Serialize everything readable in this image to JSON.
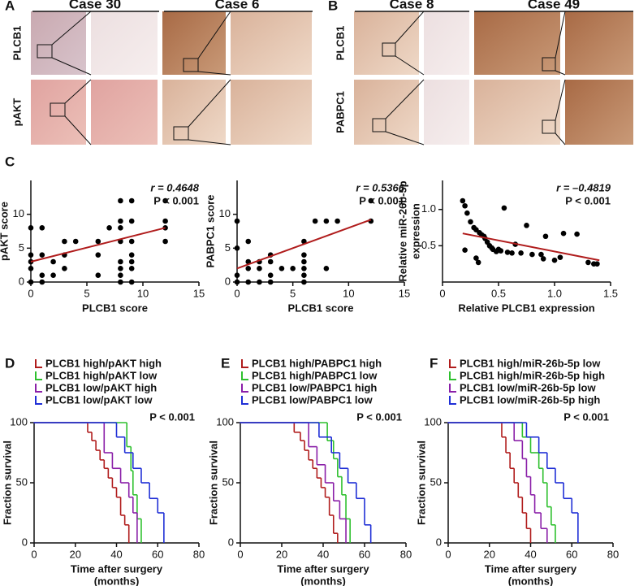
{
  "panel_labels": [
    "A",
    "B",
    "C",
    "D",
    "E",
    "F"
  ],
  "images": [
    {
      "columns": [
        "Case 30",
        "Case 6"
      ],
      "rows": [
        "PLCB1",
        "pAKT"
      ]
    },
    {
      "columns": [
        "Case 8",
        "Case 49"
      ],
      "rows": [
        "PLCB1",
        "PABPC1"
      ]
    }
  ],
  "chart_data": [
    {
      "type": "scatter",
      "xlabel": [
        "PLCB1 score"
      ],
      "ylabel": [
        "pAKT score"
      ],
      "r_text": "r = 0.4648",
      "p_text": "P < 0.001",
      "xlim": [
        0,
        15
      ],
      "ylim": [
        0,
        15
      ],
      "xticks": [
        0,
        5,
        10,
        15
      ],
      "yticks": [
        0,
        5,
        10
      ],
      "color": "#000000",
      "trend": {
        "x": [
          0,
          12
        ],
        "values": [
          3,
          8
        ],
        "color": "#b01c1c"
      },
      "x": [
        0,
        0,
        0,
        0,
        0,
        1,
        1,
        1,
        1,
        2,
        2,
        3,
        3,
        3,
        4,
        6,
        6,
        6,
        7,
        8,
        8,
        8,
        8,
        8,
        8,
        8,
        8,
        9,
        9,
        9,
        9,
        9,
        9,
        9,
        12,
        12,
        12,
        12
      ],
      "values": [
        0,
        2,
        3,
        4,
        8,
        0,
        1,
        4,
        8,
        1,
        3,
        2,
        4,
        6,
        6,
        1,
        4,
        6,
        8,
        0,
        1,
        2,
        3,
        6,
        8,
        9,
        12,
        0,
        2,
        3,
        4,
        6,
        9,
        12,
        6,
        8,
        9,
        12
      ]
    },
    {
      "type": "scatter",
      "xlabel": [
        "PLCB1 score"
      ],
      "ylabel": [
        "PABPC1 score"
      ],
      "r_text": "r = 0.5366",
      "p_text": "P < 0.001",
      "xlim": [
        0,
        15
      ],
      "ylim": [
        0,
        15
      ],
      "xticks": [
        0,
        5,
        10,
        15
      ],
      "yticks": [
        0,
        5,
        10
      ],
      "color": "#000000",
      "trend": {
        "x": [
          0,
          12
        ],
        "values": [
          2,
          9.2
        ],
        "color": "#b01c1c"
      },
      "x": [
        0,
        0,
        0,
        0,
        1,
        1,
        1,
        1,
        2,
        2,
        2,
        3,
        3,
        3,
        3,
        4,
        5,
        6,
        6,
        6,
        6,
        6,
        6,
        7,
        8,
        8,
        9,
        12,
        12
      ],
      "values": [
        0,
        1,
        5,
        9,
        0,
        2,
        3,
        6,
        0,
        2,
        3,
        0,
        1,
        3,
        4,
        2,
        2,
        0,
        1,
        2,
        3,
        4,
        6,
        9,
        2,
        9,
        9,
        9,
        12
      ]
    },
    {
      "type": "scatter",
      "xlabel": [
        "Relative PLCB1 expression"
      ],
      "ylabel": [
        "Relative miR-26b-5p",
        "expression"
      ],
      "r_text": "r = –0.4819",
      "p_text": "P < 0.001",
      "xlim": [
        0,
        1.5
      ],
      "ylim": [
        0,
        1.4
      ],
      "xticks": [
        0,
        0.5,
        {
          "value": 1,
          "label": "1.0"
        },
        1.5
      ],
      "yticks": [
        0.5,
        {
          "value": 1,
          "label": "1.0"
        }
      ],
      "color": "#000000",
      "trend": {
        "x": [
          0.18,
          1.4
        ],
        "values": [
          0.67,
          0.3
        ],
        "color": "#b01c1c"
      },
      "x": [
        0.18,
        0.2,
        0.22,
        0.2,
        0.25,
        0.28,
        0.3,
        0.3,
        0.32,
        0.33,
        0.35,
        0.37,
        0.38,
        0.4,
        0.42,
        0.44,
        0.45,
        0.48,
        0.5,
        0.52,
        0.55,
        0.58,
        0.62,
        0.65,
        0.7,
        0.75,
        0.8,
        0.88,
        0.9,
        0.92,
        1.0,
        1.05,
        1.08,
        1.2,
        1.3,
        1.35,
        1.38
      ],
      "values": [
        1.12,
        1.05,
        0.95,
        0.44,
        0.83,
        0.75,
        0.72,
        0.33,
        0.27,
        0.68,
        0.65,
        0.63,
        0.6,
        0.55,
        0.5,
        0.47,
        0.45,
        0.42,
        0.45,
        0.43,
        1.02,
        0.41,
        0.4,
        0.52,
        0.4,
        0.78,
        0.38,
        0.38,
        0.32,
        0.63,
        0.3,
        0.34,
        0.67,
        0.66,
        0.27,
        0.25,
        0.25
      ]
    },
    {
      "type": "km",
      "xlabel": [
        "Time after surgery",
        "(months)"
      ],
      "ylabel": [
        "Fraction survival"
      ],
      "p_text": "P < 0.001",
      "xlim": [
        0,
        80
      ],
      "ylim": [
        0,
        100
      ],
      "xticks": [
        0,
        20,
        40,
        60,
        80
      ],
      "yticks": [
        0,
        50,
        100
      ],
      "series": [
        {
          "name": "PLCB1 high/pAKT high",
          "color": "#b01c1c",
          "x": [
            0,
            26,
            28,
            30,
            32,
            34,
            36,
            38,
            40,
            42,
            44,
            46
          ],
          "values": [
            100,
            92,
            85,
            77,
            69,
            62,
            54,
            46,
            38,
            23,
            15,
            0
          ]
        },
        {
          "name": "PLCB1 high/pAKT low",
          "color": "#2ec02e",
          "x": [
            0,
            45,
            47,
            48,
            50,
            52
          ],
          "values": [
            100,
            80,
            60,
            40,
            20,
            0
          ]
        },
        {
          "name": "PLCB1 low/pAKT high",
          "color": "#8a1fa8",
          "x": [
            0,
            34,
            38,
            42,
            46,
            48,
            50
          ],
          "values": [
            100,
            75,
            62,
            50,
            38,
            25,
            0
          ]
        },
        {
          "name": "PLCB1 low/pAKT low",
          "color": "#1f2fd6",
          "x": [
            0,
            40,
            44,
            48,
            52,
            56,
            60,
            63
          ],
          "values": [
            100,
            88,
            75,
            62,
            50,
            37,
            25,
            0
          ]
        }
      ]
    },
    {
      "type": "km",
      "xlabel": [
        "Time after surgery",
        "(months)"
      ],
      "ylabel": [
        "Fraction survival"
      ],
      "p_text": "P < 0.001",
      "xlim": [
        0,
        80
      ],
      "ylim": [
        0,
        100
      ],
      "xticks": [
        0,
        20,
        40,
        60,
        80
      ],
      "yticks": [
        0,
        50,
        100
      ],
      "series": [
        {
          "name": "PLCB1 high/PABPC1 high",
          "color": "#b01c1c",
          "x": [
            0,
            26,
            29,
            31,
            33,
            35,
            37,
            39,
            41,
            43,
            45,
            47
          ],
          "values": [
            100,
            92,
            85,
            77,
            69,
            62,
            54,
            46,
            38,
            23,
            8,
            0
          ]
        },
        {
          "name": "PLCB1 high/PABPC1 low",
          "color": "#2ec02e",
          "x": [
            0,
            42,
            45,
            47,
            49,
            51,
            53
          ],
          "values": [
            100,
            85,
            70,
            55,
            40,
            20,
            0
          ]
        },
        {
          "name": "PLCB1 low/PABPC1 high",
          "color": "#8a1fa8",
          "x": [
            0,
            33,
            37,
            41,
            45,
            48,
            51
          ],
          "values": [
            100,
            80,
            65,
            50,
            35,
            20,
            0
          ]
        },
        {
          "name": "PLCB1 low/PABPC1 low",
          "color": "#1f2fd6",
          "x": [
            0,
            38,
            44,
            48,
            52,
            56,
            60,
            63
          ],
          "values": [
            100,
            88,
            75,
            62,
            50,
            37,
            15,
            0
          ]
        }
      ]
    },
    {
      "type": "km",
      "xlabel": [
        "Time after surgery",
        "(months)"
      ],
      "ylabel": [
        "Fraction survival"
      ],
      "p_text": "P < 0.001",
      "xlim": [
        0,
        80
      ],
      "ylim": [
        0,
        100
      ],
      "xticks": [
        0,
        20,
        40,
        60,
        80
      ],
      "yticks": [
        0,
        50,
        100
      ],
      "series": [
        {
          "name": "PLCB1 high/miR-26b-5p low",
          "color": "#b01c1c",
          "x": [
            0,
            26,
            28,
            30,
            32,
            34,
            36,
            38,
            40
          ],
          "values": [
            100,
            88,
            75,
            62,
            50,
            38,
            25,
            12,
            0
          ]
        },
        {
          "name": "PLCB1 high/miR-26b-5p high",
          "color": "#2ec02e",
          "x": [
            0,
            36,
            40,
            44,
            46,
            48,
            50,
            52
          ],
          "values": [
            100,
            88,
            75,
            62,
            50,
            30,
            15,
            0
          ]
        },
        {
          "name": "PLCB1 low/miR-26b-5p low",
          "color": "#8a1fa8",
          "x": [
            0,
            32,
            36,
            38,
            40,
            42,
            45,
            48
          ],
          "values": [
            100,
            85,
            70,
            55,
            40,
            25,
            12,
            0
          ]
        },
        {
          "name": "PLCB1 low/miR-26b-5p high",
          "color": "#1f2fd6",
          "x": [
            0,
            38,
            44,
            48,
            52,
            56,
            60,
            63
          ],
          "values": [
            100,
            88,
            75,
            62,
            50,
            37,
            25,
            0
          ]
        }
      ]
    }
  ]
}
